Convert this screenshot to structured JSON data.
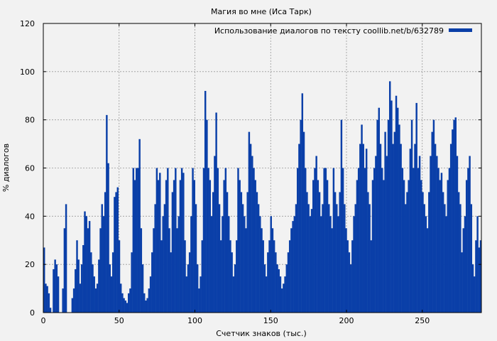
{
  "chart_data": {
    "type": "bar",
    "title": "Магия во мне (Иса Тарк)",
    "xlabel": "Счетчик знаков (тыс.)",
    "ylabel": "% диалогов",
    "xlim": [
      0,
      289
    ],
    "ylim": [
      0,
      120
    ],
    "x_ticks": [
      0,
      50,
      100,
      150,
      200,
      250
    ],
    "y_ticks": [
      0,
      20,
      40,
      60,
      80,
      100,
      120
    ],
    "grid": true,
    "legend_position": "top-right",
    "series": [
      {
        "name": "Использование диалогов по тексту coollib.net/b/632789",
        "color": "#0a3fa8",
        "values": [
          27,
          12,
          11,
          8,
          2,
          0,
          18,
          22,
          20,
          15,
          0,
          0,
          10,
          35,
          45,
          0,
          0,
          0,
          6,
          10,
          18,
          30,
          22,
          12,
          20,
          28,
          42,
          40,
          35,
          38,
          25,
          20,
          15,
          10,
          12,
          22,
          35,
          45,
          40,
          50,
          82,
          62,
          20,
          15,
          25,
          48,
          50,
          52,
          30,
          12,
          8,
          6,
          5,
          4,
          8,
          10,
          25,
          60,
          55,
          60,
          60,
          72,
          35,
          20,
          8,
          5,
          6,
          10,
          15,
          25,
          35,
          45,
          60,
          55,
          58,
          30,
          40,
          45,
          55,
          60,
          35,
          25,
          50,
          55,
          60,
          35,
          40,
          55,
          60,
          58,
          30,
          15,
          20,
          25,
          40,
          60,
          55,
          45,
          20,
          10,
          15,
          30,
          60,
          92,
          80,
          60,
          55,
          40,
          50,
          65,
          83,
          60,
          45,
          30,
          40,
          55,
          60,
          50,
          40,
          30,
          25,
          15,
          20,
          30,
          60,
          55,
          50,
          45,
          40,
          35,
          50,
          75,
          70,
          65,
          60,
          55,
          50,
          45,
          40,
          35,
          30,
          20,
          15,
          25,
          30,
          40,
          35,
          30,
          25,
          20,
          18,
          15,
          10,
          12,
          15,
          20,
          25,
          30,
          35,
          38,
          40,
          45,
          60,
          70,
          80,
          91,
          75,
          60,
          50,
          45,
          40,
          43,
          55,
          60,
          65,
          55,
          50,
          40,
          45,
          60,
          60,
          55,
          45,
          40,
          35,
          60,
          50,
          45,
          40,
          50,
          80,
          60,
          45,
          35,
          30,
          25,
          20,
          30,
          40,
          45,
          55,
          60,
          70,
          78,
          70,
          60,
          68,
          50,
          45,
          30,
          55,
          60,
          65,
          80,
          85,
          70,
          60,
          55,
          75,
          65,
          80,
          96,
          88,
          70,
          75,
          90,
          85,
          78,
          70,
          60,
          55,
          45,
          50,
          55,
          68,
          80,
          60,
          70,
          87,
          60,
          65,
          55,
          50,
          45,
          40,
          35,
          50,
          65,
          75,
          80,
          70,
          65,
          60,
          55,
          58,
          50,
          45,
          40,
          55,
          60,
          70,
          76,
          80,
          81,
          65,
          50,
          45,
          25,
          35,
          40,
          55,
          60,
          65,
          45,
          20,
          15,
          30,
          40,
          27,
          30
        ]
      }
    ]
  }
}
